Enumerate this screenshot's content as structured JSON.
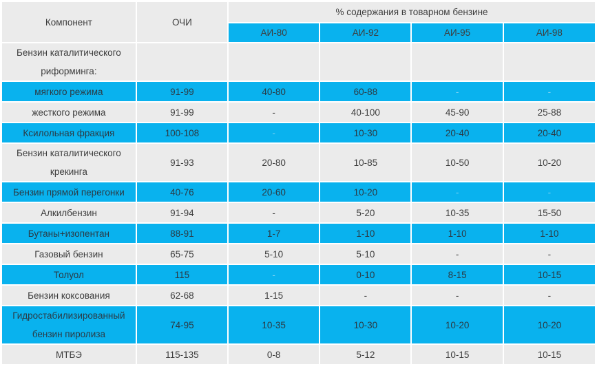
{
  "header": {
    "component": "Компонент",
    "octane": "ОЧИ",
    "content_title": "% содержания в товарном бензине",
    "grades": [
      "АИ-80",
      "АИ-92",
      "АИ-95",
      "АИ-98"
    ]
  },
  "rows": [
    {
      "name": "Бензин каталитического риформинга:",
      "oci": "",
      "v": [
        "",
        "",
        "",
        ""
      ],
      "style": "gray",
      "tall": true
    },
    {
      "name": "мягкого режима",
      "oci": "91-99",
      "v": [
        "40-80",
        "60-88",
        "-",
        "-"
      ],
      "style": "blue"
    },
    {
      "name": "жесткого режима",
      "oci": "91-99",
      "v": [
        "-",
        "40-100",
        "45-90",
        "25-88"
      ],
      "style": "gray"
    },
    {
      "name": "Ксилольная фракция",
      "oci": "100-108",
      "v": [
        "-",
        "10-30",
        "20-40",
        "20-40"
      ],
      "style": "blue"
    },
    {
      "name": "Бензин каталитического крекинга",
      "oci": "91-93",
      "v": [
        "20-80",
        "10-85",
        "10-50",
        "10-20"
      ],
      "style": "gray",
      "tall": true
    },
    {
      "name": "Бензин прямой перегонки",
      "oci": "40-76",
      "v": [
        "20-60",
        "10-20",
        "-",
        "-"
      ],
      "style": "blue"
    },
    {
      "name": "Алкилбензин",
      "oci": "91-94",
      "v": [
        "-",
        "5-20",
        "10-35",
        "15-50"
      ],
      "style": "gray"
    },
    {
      "name": "Бутаны+изопентан",
      "oci": "88-91",
      "v": [
        "1-7",
        "1-10",
        "1-10",
        "1-10"
      ],
      "style": "blue"
    },
    {
      "name": "Газовый бензин",
      "oci": "65-75",
      "v": [
        "5-10",
        "5-10",
        "-",
        "-"
      ],
      "style": "gray"
    },
    {
      "name": "Толуол",
      "oci": "115",
      "v": [
        "-",
        "0-10",
        "8-15",
        "10-15"
      ],
      "style": "blue"
    },
    {
      "name": "Бензин коксования",
      "oci": "62-68",
      "v": [
        "1-15",
        "-",
        "-",
        "-"
      ],
      "style": "gray"
    },
    {
      "name": "Гидростабилизированный бензин пиролиза",
      "oci": "74-95",
      "v": [
        "10-35",
        "10-30",
        "10-20",
        "10-20"
      ],
      "style": "blue",
      "tall": true
    },
    {
      "name": "МТБЭ",
      "oci": "115-135",
      "v": [
        "0-8",
        "5-12",
        "10-15",
        "10-15"
      ],
      "style": "gray"
    }
  ],
  "colors": {
    "blue": "#09b2ee",
    "gray": "#ebebeb",
    "text": "#3d3d3d"
  }
}
